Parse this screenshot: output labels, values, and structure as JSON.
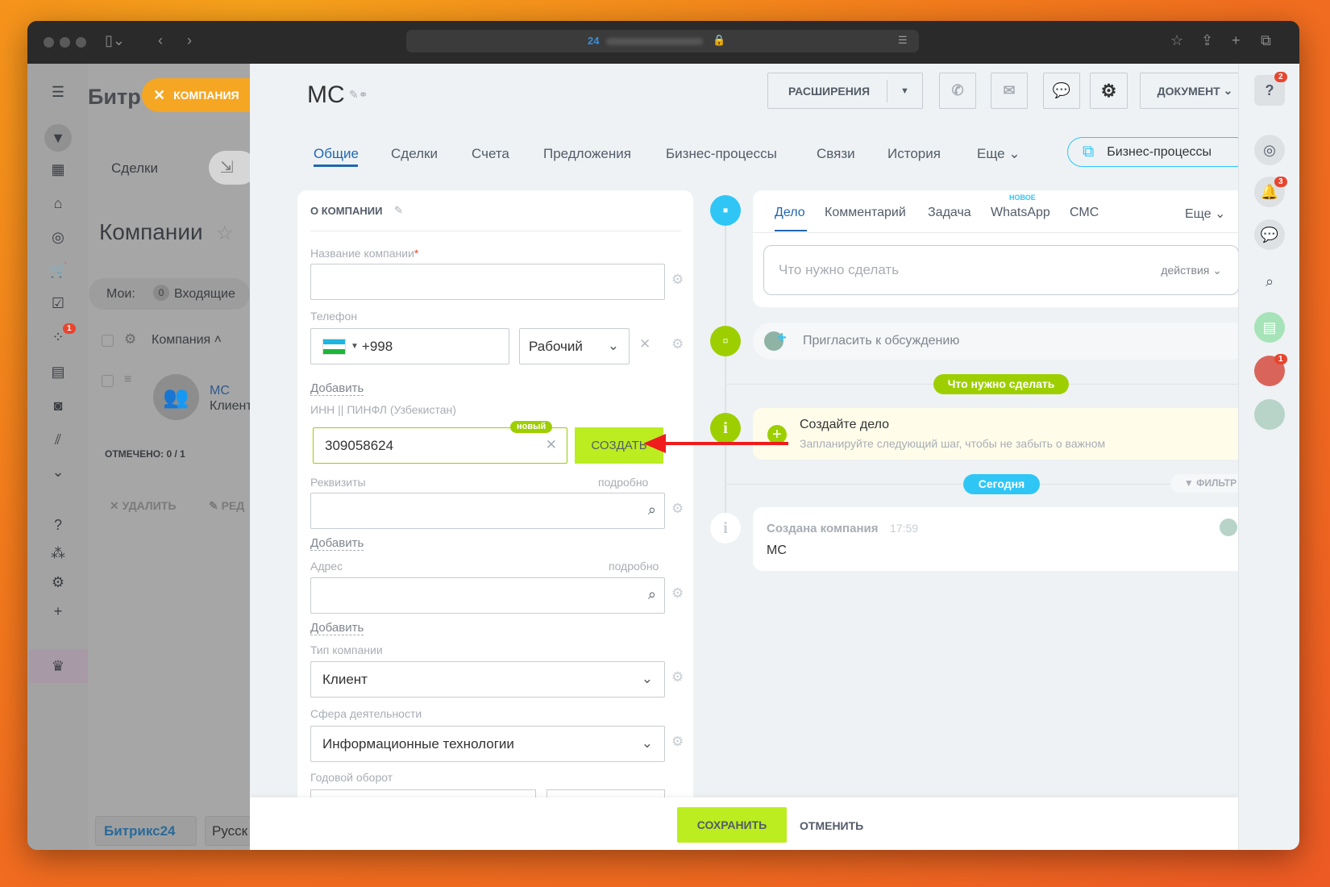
{
  "browser": {
    "url_prefix": "24"
  },
  "crm_background": {
    "logo": "Битр",
    "deals_label": "Сделки",
    "page_title": "Компании",
    "filter": {
      "label": "Мои:",
      "count": "0",
      "item": "Входящие"
    },
    "column_header": "Компания",
    "row": {
      "name": "МС",
      "type": "Клиент"
    },
    "selected": "ОТМЕЧЕНО:",
    "selected_value": "0 / 1",
    "delete_label": "УДАЛИТЬ",
    "edit_label": "РЕД",
    "footer_logo": "Битрикс24",
    "footer_lang": "Русск",
    "sidebar_badge": "1"
  },
  "entity_tag": {
    "label": "КОМПАНИЯ",
    "color": "#f5a623"
  },
  "header": {
    "title": "МС",
    "extensions_label": "РАСШИРЕНИЯ",
    "document_label": "ДОКУМЕНТ",
    "tabs": [
      {
        "label": "Общие",
        "active": true
      },
      {
        "label": "Сделки"
      },
      {
        "label": "Счета"
      },
      {
        "label": "Предложения"
      },
      {
        "label": "Бизнес-процессы"
      },
      {
        "label": "Связи"
      },
      {
        "label": "История"
      },
      {
        "label": "Еще"
      }
    ],
    "bp_button": "Бизнес-процессы"
  },
  "form": {
    "section_title": "О КОМПАНИИ",
    "company_name": {
      "label": "Название компании",
      "required": "*",
      "value": ""
    },
    "phone": {
      "label": "Телефон",
      "code": "+998",
      "type": "Рабочий"
    },
    "add_label": "Добавить",
    "inn": {
      "label": "ИНН || ПИНФЛ (Узбекистан)",
      "value": "309058624",
      "badge": "новый",
      "create_button": "СОЗДАТЬ"
    },
    "requisites": {
      "label": "Реквизиты",
      "more": "подробно"
    },
    "address": {
      "label": "Адрес",
      "more": "подробно"
    },
    "company_type": {
      "label": "Тип компании",
      "value": "Клиент"
    },
    "industry": {
      "label": "Сфера деятельности",
      "value": "Информационные технологии"
    },
    "revenue": {
      "label": "Годовой оборот"
    }
  },
  "footer": {
    "save": "СОХРАНИТЬ",
    "cancel": "ОТМЕНИТЬ",
    "accent": "#bbed21"
  },
  "timeline": {
    "tabs": [
      {
        "label": "Дело",
        "active": true
      },
      {
        "label": "Комментарий"
      },
      {
        "label": "Задача"
      },
      {
        "label": "WhatsApp",
        "badge": "НОВОЕ"
      },
      {
        "label": "СМС"
      }
    ],
    "more": "Еще",
    "todo_placeholder": "Что нужно сделать",
    "actions": "действия",
    "invite": "Пригласить к обсуждению",
    "todo_pill": "Что нужно сделать",
    "create": {
      "title": "Создайте дело",
      "subtitle": "Запланируйте следующий шаг, чтобы не забыть о важном"
    },
    "today": "Сегодня",
    "filter": "ФИЛЬТР",
    "event": {
      "title": "Создана компания",
      "time": "17:59",
      "text": "МС"
    }
  },
  "right_bar": {
    "help_badge": "2",
    "bell_badge": "3",
    "avatar_badge": "1"
  }
}
